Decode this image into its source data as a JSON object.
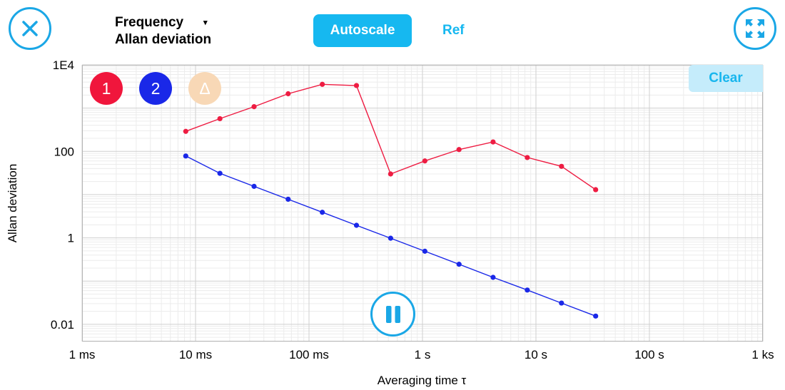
{
  "toolbar": {
    "close_icon": "close-icon",
    "expand_icon": "expand-arrows-icon",
    "mode_line1": "Frequency",
    "mode_line2": "Allan deviation",
    "caret": "▾",
    "autoscale_label": "Autoscale",
    "ref_label": "Ref"
  },
  "badges": {
    "one": "1",
    "two": "2",
    "delta": "Δ"
  },
  "clear_label": "Clear",
  "pause_icon": "pause-icon",
  "colors": {
    "accent": "#16b8f0",
    "series1": "#ee1c42",
    "series2": "#1a28e8",
    "delta": "#f8d8b6"
  },
  "chart_data": {
    "type": "line",
    "xlabel": "Averaging time τ",
    "ylabel": "Allan deviation",
    "x_scale": "log",
    "y_scale": "log",
    "xlim": [
      0.001,
      1000
    ],
    "ylim": [
      0.004,
      10000
    ],
    "x_ticks": [
      {
        "value": 0.001,
        "label": "1 ms"
      },
      {
        "value": 0.01,
        "label": "10 ms"
      },
      {
        "value": 0.1,
        "label": "100 ms"
      },
      {
        "value": 1,
        "label": "1 s"
      },
      {
        "value": 10,
        "label": "10 s"
      },
      {
        "value": 100,
        "label": "100 s"
      },
      {
        "value": 1000,
        "label": "1 ks"
      }
    ],
    "y_ticks": [
      {
        "value": 0.01,
        "label": "0.01"
      },
      {
        "value": 1,
        "label": "1"
      },
      {
        "value": 100,
        "label": "100"
      },
      {
        "value": 10000,
        "label": "1E4"
      }
    ],
    "grid": true,
    "series": [
      {
        "name": "1",
        "color": "#ee1c42",
        "x": [
          0.0082,
          0.0164,
          0.0328,
          0.0655,
          0.131,
          0.262,
          0.524,
          1.05,
          2.1,
          4.19,
          8.39,
          16.8,
          33.6
        ],
        "y": [
          290,
          570,
          1080,
          2150,
          3550,
          3330,
          30,
          60,
          110,
          165,
          72,
          45,
          13
        ]
      },
      {
        "name": "2",
        "color": "#1a28e8",
        "x": [
          0.0082,
          0.0164,
          0.0328,
          0.0655,
          0.131,
          0.262,
          0.524,
          1.05,
          2.1,
          4.19,
          8.39,
          16.8,
          33.6
        ],
        "y": [
          78,
          31,
          15.5,
          7.8,
          3.9,
          1.95,
          0.98,
          0.49,
          0.245,
          0.122,
          0.062,
          0.031,
          0.0155
        ]
      }
    ]
  }
}
